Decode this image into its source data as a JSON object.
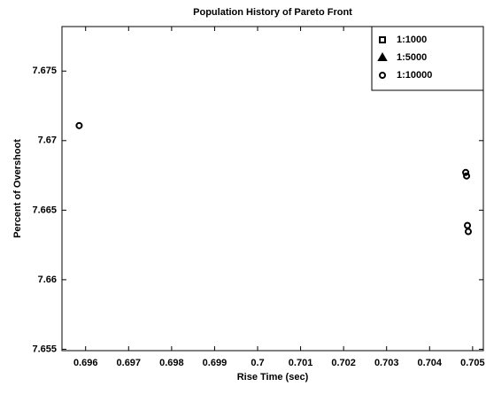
{
  "chart_data": {
    "type": "scatter",
    "title": "Population History of Pareto Front",
    "xlabel": "Rise Time (sec)",
    "ylabel": "Percent of Overshoot",
    "series": [
      {
        "name": "1:1000",
        "marker": "square",
        "color": "#000000",
        "x": [],
        "y": []
      },
      {
        "name": "1:5000",
        "marker": "triangle",
        "color": "#000000",
        "x": [],
        "y": []
      },
      {
        "name": "1:10000",
        "marker": "circle",
        "color": "#000000",
        "x": [
          0.69585,
          0.70484,
          0.70486,
          0.70488,
          0.7049
        ],
        "y": [
          7.67108,
          7.66771,
          7.66746,
          7.6639,
          7.66346
        ]
      }
    ],
    "xlim": [
      0.69545,
      0.70525
    ],
    "xticks": [
      0.696,
      0.697,
      0.698,
      0.699,
      0.7,
      0.701,
      0.702,
      0.703,
      0.704,
      0.705
    ],
    "ylim": [
      7.6549,
      7.6782
    ],
    "yticks": [
      7.655,
      7.66,
      7.665,
      7.67,
      7.675
    ],
    "legend": "upper right",
    "grid": false
  }
}
